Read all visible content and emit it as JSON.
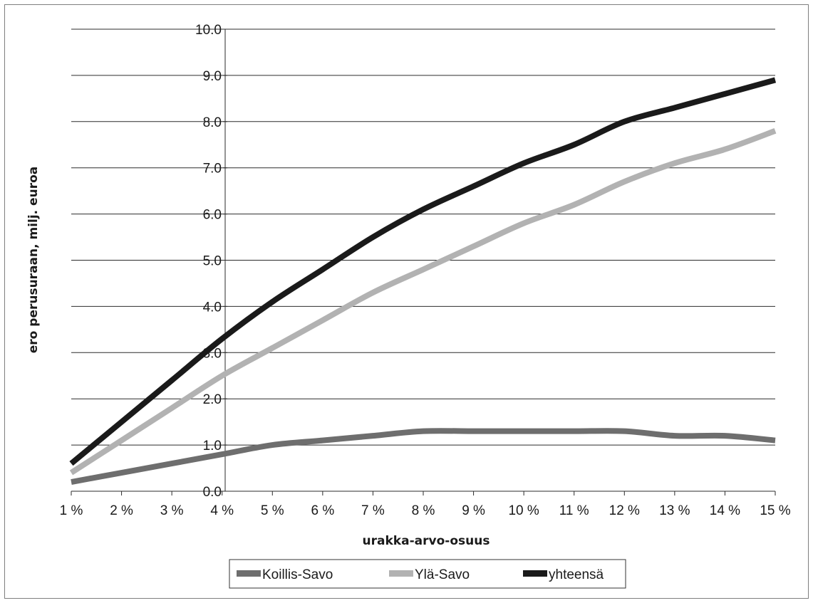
{
  "chart_data": {
    "type": "line",
    "title": "",
    "xlabel": "urakka-arvo-osuus",
    "ylabel": "ero perusuraan, milj. euroa",
    "categories": [
      "1 %",
      "2 %",
      "3 %",
      "4 %",
      "5 %",
      "6 %",
      "7 %",
      "8 %",
      "9 %",
      "10 %",
      "11 %",
      "12 %",
      "13 %",
      "14 %",
      "15 %"
    ],
    "y_ticks": [
      "0.0",
      "1.0",
      "2.0",
      "3.0",
      "4.0",
      "5.0",
      "6.0",
      "7.0",
      "8.0",
      "9.0",
      "10.0"
    ],
    "ylim": [
      0,
      10
    ],
    "grid": true,
    "legend_position": "bottom",
    "series": [
      {
        "name": "Koillis-Savo",
        "color": "#6e6e6e",
        "values": [
          0.2,
          0.4,
          0.6,
          0.8,
          1.0,
          1.1,
          1.2,
          1.3,
          1.3,
          1.3,
          1.3,
          1.3,
          1.2,
          1.2,
          1.1
        ]
      },
      {
        "name": "Ylä-Savo",
        "color": "#b2b2b2",
        "values": [
          0.4,
          1.1,
          1.8,
          2.5,
          3.1,
          3.7,
          4.3,
          4.8,
          5.3,
          5.8,
          6.2,
          6.7,
          7.1,
          7.4,
          7.8
        ]
      },
      {
        "name": "yhteensä",
        "color": "#1a1a1a",
        "values": [
          0.6,
          1.5,
          2.4,
          3.3,
          4.1,
          4.8,
          5.5,
          6.1,
          6.6,
          7.1,
          7.5,
          8.0,
          8.3,
          8.6,
          8.9
        ]
      }
    ]
  }
}
